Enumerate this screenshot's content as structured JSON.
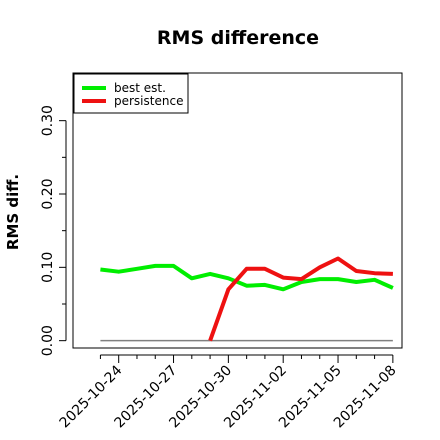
{
  "chart_data": {
    "type": "line",
    "title": "RMS difference",
    "xlabel": "",
    "ylabel": "RMS diff.",
    "y_ticks": [
      0.0,
      0.1,
      0.2,
      0.3
    ],
    "y_tick_labels": [
      "0.00",
      "0.10",
      "0.20",
      "0.30"
    ],
    "ylim": [
      -0.01,
      0.365
    ],
    "xlim": [
      -1.5,
      16.5
    ],
    "x_tick_positions": [
      1,
      4,
      7,
      10,
      13,
      16
    ],
    "x_tick_labels": [
      "2025-10-24",
      "2025-10-27",
      "2025-10-30",
      "2025-11-02",
      "2025-11-05",
      "2025-11-08"
    ],
    "x": [
      "2025-10-23",
      "2025-10-24",
      "2025-10-25",
      "2025-10-26",
      "2025-10-27",
      "2025-10-28",
      "2025-10-29",
      "2025-10-30",
      "2025-10-31",
      "2025-11-01",
      "2025-11-02",
      "2025-11-03",
      "2025-11-04",
      "2025-11-05",
      "2025-11-06",
      "2025-11-07",
      "2025-11-08"
    ],
    "reference_line": {
      "value": 0.0,
      "from": "2025-10-23",
      "to": "2025-11-08",
      "color": "#808080"
    },
    "series": [
      {
        "name": "best est.",
        "color": "#00ee00",
        "values": [
          0.097,
          0.094,
          0.098,
          0.102,
          0.102,
          0.085,
          0.091,
          0.085,
          0.075,
          0.076,
          0.07,
          0.08,
          0.084,
          0.084,
          0.08,
          0.083,
          0.072
        ]
      },
      {
        "name": "persistence",
        "color": "#ee1111",
        "values": [
          null,
          null,
          null,
          null,
          null,
          null,
          0.0,
          0.07,
          0.098,
          0.098,
          0.086,
          0.084,
          0.1,
          0.112,
          0.095,
          0.092,
          0.091
        ]
      }
    ],
    "grid": false,
    "legend": "top-left"
  }
}
